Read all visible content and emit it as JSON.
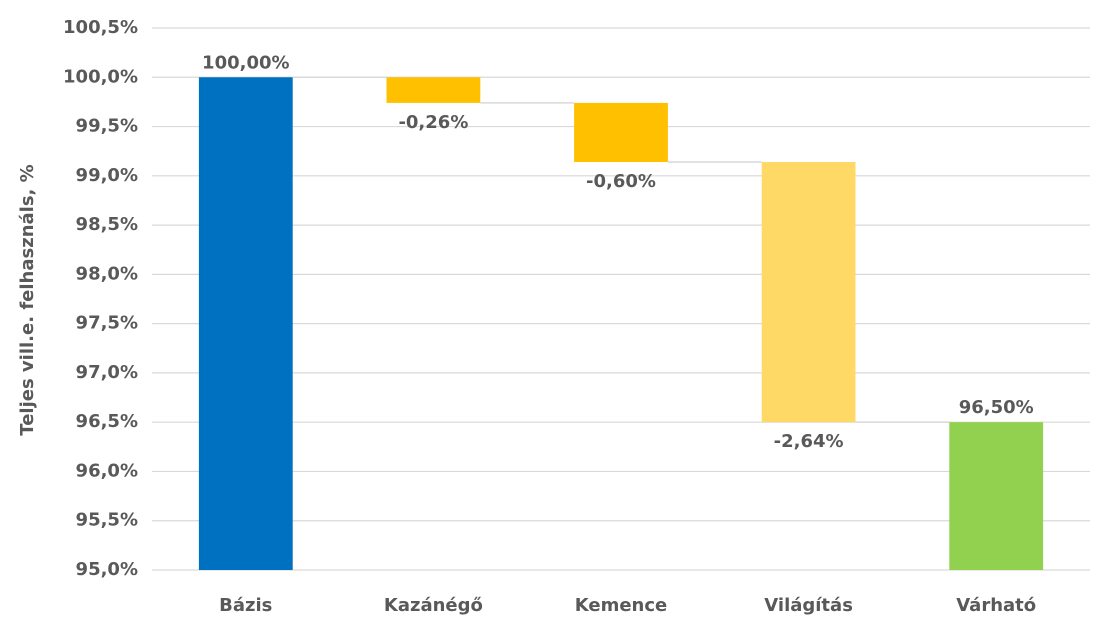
{
  "chart_data": {
    "type": "waterfall",
    "y_label": "Teljes vill.e. felhasználs, %",
    "categories": [
      "Bázis",
      "Kazánégő",
      "Kemence",
      "Világítás",
      "Várható"
    ],
    "values": [
      100,
      -0.26,
      -0.6,
      -2.64,
      96.5
    ],
    "value_labels": [
      "100,00%",
      "-0,26%",
      "-0,60%",
      "-2,64%",
      "96,50%"
    ],
    "measure": [
      "absolute",
      "relative",
      "relative",
      "relative",
      "total"
    ],
    "colors": [
      "#0070c0",
      "#ffc000",
      "#ffc000",
      "#ffd966",
      "#92d050"
    ],
    "ylim": [
      95,
      100.5
    ],
    "yticks": [
      {
        "value": 95,
        "label": "95,0%"
      },
      {
        "value": 95.5,
        "label": "95,5%"
      },
      {
        "value": 96,
        "label": "96,0%"
      },
      {
        "value": 96.5,
        "label": "96,5%"
      },
      {
        "value": 97,
        "label": "97,0%"
      },
      {
        "value": 97.5,
        "label": "97,5%"
      },
      {
        "value": 98,
        "label": "98,0%"
      },
      {
        "value": 98.5,
        "label": "98,5%"
      },
      {
        "value": 99,
        "label": "99,0%"
      },
      {
        "value": 99.5,
        "label": "99,5%"
      },
      {
        "value": 100,
        "label": "100,0%"
      },
      {
        "value": 100.5,
        "label": "100,5%"
      }
    ],
    "grid": true
  }
}
